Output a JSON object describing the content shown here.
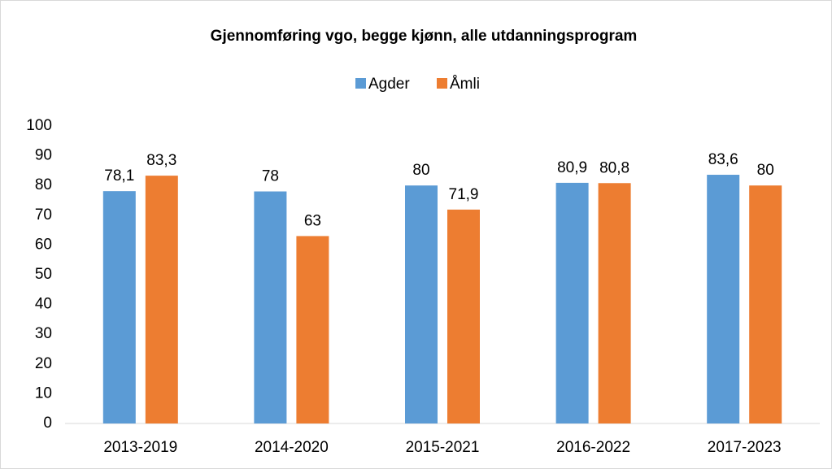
{
  "chart_data": {
    "type": "bar",
    "title": "Gjennomføring vgo, begge kjønn, alle utdanningsprogram",
    "categories": [
      "2013-2019",
      "2014-2020",
      "2015-2021",
      "2016-2022",
      "2017-2023"
    ],
    "series": [
      {
        "name": "Agder",
        "color": "#5b9bd5",
        "values": [
          78.1,
          78,
          80,
          80.9,
          83.6
        ],
        "value_labels": [
          "78,1",
          "78",
          "80",
          "80,9",
          "83,6"
        ]
      },
      {
        "name": "Åmli",
        "color": "#ed7d31",
        "values": [
          83.3,
          63,
          71.9,
          80.8,
          80
        ],
        "value_labels": [
          "83,3",
          "63",
          "71,9",
          "80,8",
          "80"
        ]
      }
    ],
    "ylim": [
      0,
      100
    ],
    "yticks": [
      0,
      10,
      20,
      30,
      40,
      50,
      60,
      70,
      80,
      90,
      100
    ],
    "grid": false,
    "legend": "top"
  }
}
